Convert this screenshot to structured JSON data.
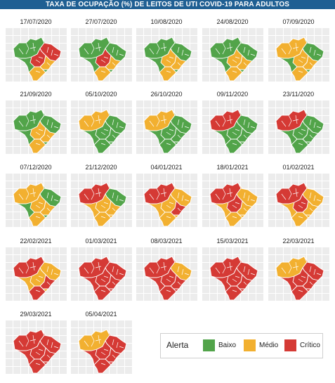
{
  "title": "TAXA DE OCUPAÇÃO (%) DE LEITOS DE UTI COVID-19 PARA ADULTOS",
  "colors": {
    "baixo": "#52a44a",
    "medio": "#f2b030",
    "critico": "#d53a35"
  },
  "legend": {
    "title": "Alerta",
    "items": [
      {
        "key": "baixo",
        "label": "Baixo"
      },
      {
        "key": "medio",
        "label": "Médio"
      },
      {
        "key": "critico",
        "label": "Crítico"
      }
    ]
  },
  "panels": [
    {
      "date": "17/07/2020",
      "base": "baixo",
      "regions": {
        "n": "baixo",
        "ne": "critico",
        "co": "critico",
        "se": "medio",
        "s": "medio"
      }
    },
    {
      "date": "27/07/2020",
      "base": "baixo",
      "regions": {
        "n": "baixo",
        "ne": "baixo",
        "co": "critico",
        "se": "medio",
        "s": "medio"
      }
    },
    {
      "date": "10/08/2020",
      "base": "baixo",
      "regions": {
        "n": "baixo",
        "ne": "baixo",
        "co": "medio",
        "se": "medio",
        "s": "medio"
      }
    },
    {
      "date": "24/08/2020",
      "base": "baixo",
      "regions": {
        "n": "baixo",
        "ne": "baixo",
        "co": "medio",
        "se": "medio",
        "s": "medio"
      }
    },
    {
      "date": "07/09/2020",
      "base": "baixo",
      "regions": {
        "n": "medio",
        "ne": "baixo",
        "co": "medio",
        "se": "medio",
        "s": "medio"
      }
    },
    {
      "date": "21/09/2020",
      "base": "baixo",
      "regions": {
        "n": "baixo",
        "ne": "baixo",
        "co": "medio",
        "se": "medio",
        "s": "medio"
      }
    },
    {
      "date": "05/10/2020",
      "base": "baixo",
      "regions": {
        "n": "medio",
        "ne": "baixo",
        "co": "baixo",
        "se": "baixo",
        "s": "baixo"
      }
    },
    {
      "date": "26/10/2020",
      "base": "baixo",
      "regions": {
        "n": "medio",
        "ne": "baixo",
        "co": "baixo",
        "se": "baixo",
        "s": "baixo"
      }
    },
    {
      "date": "09/11/2020",
      "base": "baixo",
      "regions": {
        "n": "critico",
        "ne": "baixo",
        "co": "baixo",
        "se": "baixo",
        "s": "baixo"
      }
    },
    {
      "date": "23/11/2020",
      "base": "baixo",
      "regions": {
        "n": "critico",
        "ne": "baixo",
        "co": "baixo",
        "se": "baixo",
        "s": "baixo"
      }
    },
    {
      "date": "07/12/2020",
      "base": "baixo",
      "regions": {
        "n": "medio",
        "ne": "baixo",
        "co": "medio",
        "se": "medio",
        "s": "medio"
      }
    },
    {
      "date": "21/12/2020",
      "base": "medio",
      "regions": {
        "n": "critico",
        "ne": "baixo",
        "co": "medio",
        "se": "medio",
        "s": "medio"
      }
    },
    {
      "date": "04/01/2021",
      "base": "medio",
      "regions": {
        "n": "critico",
        "ne": "medio",
        "co": "medio",
        "se": "critico",
        "s": "medio"
      }
    },
    {
      "date": "18/01/2021",
      "base": "medio",
      "regions": {
        "n": "critico",
        "ne": "medio",
        "co": "critico",
        "se": "medio",
        "s": "medio"
      }
    },
    {
      "date": "01/02/2021",
      "base": "medio",
      "regions": {
        "n": "critico",
        "ne": "medio",
        "co": "critico",
        "se": "medio",
        "s": "medio"
      }
    },
    {
      "date": "22/02/2021",
      "base": "medio",
      "regions": {
        "n": "critico",
        "ne": "medio",
        "co": "medio",
        "se": "critico",
        "s": "critico"
      }
    },
    {
      "date": "01/03/2021",
      "base": "critico",
      "regions": {
        "n": "critico",
        "ne": "critico",
        "co": "critico",
        "se": "critico",
        "s": "critico"
      }
    },
    {
      "date": "08/03/2021",
      "base": "critico",
      "regions": {
        "n": "critico",
        "ne": "medio",
        "co": "critico",
        "se": "critico",
        "s": "critico"
      }
    },
    {
      "date": "15/03/2021",
      "base": "critico",
      "regions": {
        "n": "critico",
        "ne": "critico",
        "co": "critico",
        "se": "critico",
        "s": "critico"
      }
    },
    {
      "date": "22/03/2021",
      "base": "critico",
      "regions": {
        "n": "medio",
        "ne": "critico",
        "co": "critico",
        "se": "critico",
        "s": "critico"
      }
    },
    {
      "date": "29/03/2021",
      "base": "critico",
      "regions": {
        "n": "critico",
        "ne": "critico",
        "co": "critico",
        "se": "critico",
        "s": "critico"
      }
    },
    {
      "date": "05/04/2021",
      "base": "critico",
      "regions": {
        "n": "medio",
        "ne": "critico",
        "co": "critico",
        "se": "critico",
        "s": "critico"
      }
    }
  ]
}
